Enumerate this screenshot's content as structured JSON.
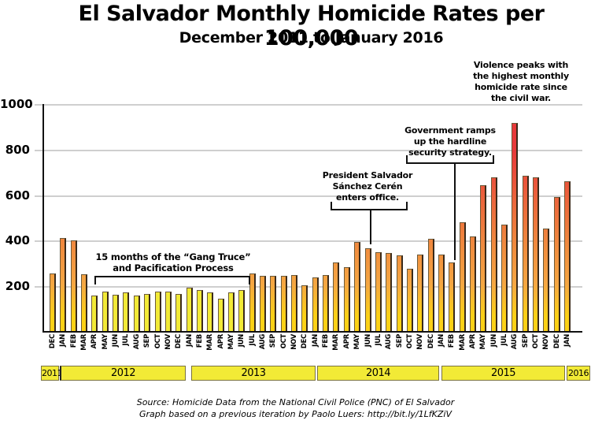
{
  "header": {
    "title": "El Salvador Monthly Homicide Rates per 100,000",
    "subtitle": "December 2011 to January 2016"
  },
  "chart_data": {
    "type": "bar",
    "title": "El Salvador Monthly Homicide Rates per 100,000",
    "subtitle": "December 2011 to January 2016",
    "xlabel": "",
    "ylabel": "",
    "ylim": [
      0,
      1000
    ],
    "yticks": [
      200,
      400,
      600,
      800,
      1000
    ],
    "grid": true,
    "legend": null,
    "categories": [
      "DEC",
      "JAN",
      "FEB",
      "MAR",
      "APR",
      "MAY",
      "JUN",
      "JUL",
      "AUG",
      "SEP",
      "OCT",
      "NOV",
      "DEC",
      "JAN",
      "FEB",
      "MAR",
      "APR",
      "MAY",
      "JUN",
      "JUL",
      "AUG",
      "SEP",
      "OCT",
      "NOV",
      "DEC",
      "JAN",
      "FEB",
      "MAR",
      "APR",
      "MAY",
      "JUN",
      "JUL",
      "AUG",
      "SEP",
      "OCT",
      "NOV",
      "DEC",
      "JAN",
      "FEB",
      "MAR",
      "APR",
      "MAY",
      "JUN",
      "JUL",
      "AUG",
      "SEP",
      "OCT",
      "NOV",
      "DEC",
      "JAN"
    ],
    "years": [
      {
        "label": "2011",
        "months": [
          "DEC"
        ]
      },
      {
        "label": "2012",
        "months": [
          "JAN",
          "FEB",
          "MAR",
          "APR",
          "MAY",
          "JUN",
          "JUL",
          "AUG",
          "SEP",
          "OCT",
          "NOV",
          "DEC"
        ]
      },
      {
        "label": "2013",
        "months": [
          "JAN",
          "FEB",
          "MAR",
          "APR",
          "MAY",
          "JUN",
          "JUL",
          "AUG",
          "SEP",
          "OCT",
          "NOV",
          "DEC"
        ]
      },
      {
        "label": "2014",
        "months": [
          "JAN",
          "FEB",
          "MAR",
          "APR",
          "MAY",
          "JUN",
          "JUL",
          "AUG",
          "SEP",
          "OCT",
          "NOV",
          "DEC"
        ]
      },
      {
        "label": "2015",
        "months": [
          "JAN",
          "FEB",
          "MAR",
          "APR",
          "MAY",
          "JUN",
          "JUL",
          "AUG",
          "SEP",
          "OCT",
          "NOV",
          "DEC"
        ]
      },
      {
        "label": "2016",
        "months": [
          "JAN"
        ]
      }
    ],
    "values": [
      255,
      412,
      403,
      252,
      159,
      175,
      163,
      172,
      160,
      166,
      178,
      175,
      166,
      195,
      185,
      172,
      145,
      172,
      182,
      255,
      245,
      245,
      245,
      248,
      203,
      238,
      248,
      305,
      283,
      395,
      368,
      350,
      347,
      335,
      278,
      340,
      410,
      338,
      305,
      483,
      418,
      643,
      678,
      470,
      917,
      685,
      678,
      452,
      592,
      660
    ],
    "truce_range": [
      4,
      18
    ],
    "colors": {
      "truce": "#f2ea36",
      "gradient_top": "#e8393a",
      "gradient_mid": "#f08a3e",
      "gradient_bottom": "#fcd116"
    },
    "annotations": [
      {
        "text_lines": [
          "15 months of the “Gang Truce”",
          "and Pacification Process"
        ],
        "span": [
          "APR 2012",
          "JUN 2013"
        ]
      },
      {
        "text_lines": [
          "President Salvador",
          "Sánchez Cerén",
          "enters office."
        ],
        "points_to": "JUN 2014"
      },
      {
        "text_lines": [
          "Government ramps",
          "up the hardline",
          "security strategy."
        ],
        "points_to": "FEB 2015"
      },
      {
        "text_lines": [
          "Violence peaks with",
          "the highest monthly",
          "homicide rate since",
          "the civil war."
        ],
        "points_to": "AUG 2015"
      }
    ]
  },
  "yaxis": {
    "ticks": [
      "1000",
      "800",
      "600",
      "400",
      "200"
    ]
  },
  "annotations": {
    "truce": {
      "line1": "15 months of the “Gang Truce”",
      "line2": "and Pacification Process"
    },
    "president": {
      "line1": "President Salvador",
      "line2": "Sánchez Cerén",
      "line3": "enters office."
    },
    "government": {
      "line1": "Government ramps",
      "line2": "up the hardline",
      "line3": "security strategy."
    },
    "peak": {
      "line1": "Violence peaks with",
      "line2": "the highest monthly",
      "line3": "homicide rate since",
      "line4": "the civil war."
    }
  },
  "footer": {
    "source": "Source: Homicide Data from the National Civil Police (PNC) of El Salvador",
    "credit": "Graph based on a previous iteration by Paolo Luers: http://bit.ly/1LfKZiV"
  }
}
